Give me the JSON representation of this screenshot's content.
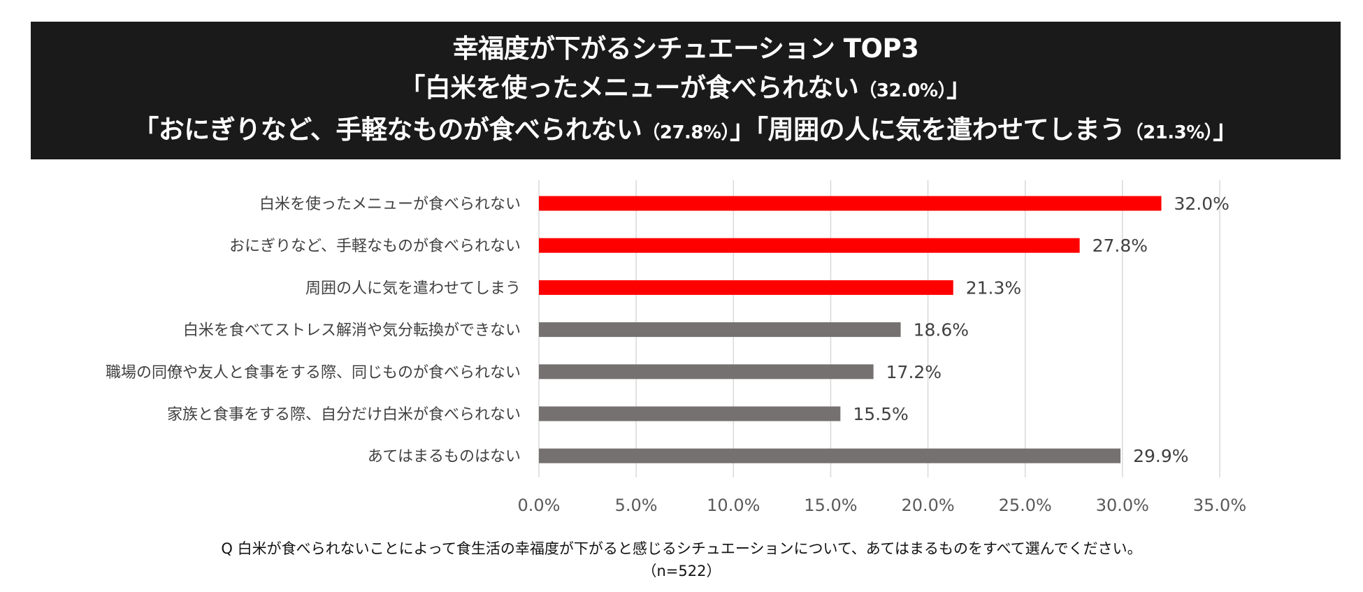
{
  "title": {
    "line1": "幸福度が下がるシチュエーション TOP3",
    "line2_open": "「白米を使ったメニューが食べられない",
    "line2_pct": "（32.0%）",
    "line2_close": "」",
    "line3_a_open": "「おにぎりなど、手軽なものが食べられない",
    "line3_a_pct": "（27.8%）",
    "line3_a_close": "」",
    "line3_b_open": "「周囲の人に気を遣わせてしまう",
    "line3_b_pct": "（21.3%）",
    "line3_b_close": "」"
  },
  "colors": {
    "banner_bg": "#1a1a1a",
    "highlight_bar": "#ff0000",
    "default_bar": "#767171",
    "grid": "#d9d9d9",
    "tick_text": "#595959",
    "label_text": "#404040"
  },
  "chart_data": {
    "type": "bar",
    "orientation": "horizontal",
    "categories": [
      "白米を使ったメニューが食べられない",
      "おにぎりなど、手軽なものが食べられない",
      "周囲の人に気を遣わせてしまう",
      "白米を食べてストレス解消や気分転換ができない",
      "職場の同僚や友人と食事をする際、同じものが食べられない",
      "家族と食事をする際、自分だけ白米が食べられない",
      "あてはまるものはない"
    ],
    "values": [
      32.0,
      27.8,
      21.3,
      18.6,
      17.2,
      15.5,
      29.9
    ],
    "value_labels": [
      "32.0%",
      "27.8%",
      "21.3%",
      "18.6%",
      "17.2%",
      "15.5%",
      "29.9%"
    ],
    "highlighted": [
      true,
      true,
      true,
      false,
      false,
      false,
      false
    ],
    "xlim": [
      0,
      35
    ],
    "xticks": [
      0,
      5,
      10,
      15,
      20,
      25,
      30,
      35
    ],
    "xtick_labels": [
      "0.0%",
      "5.0%",
      "10.0%",
      "15.0%",
      "20.0%",
      "25.0%",
      "30.0%",
      "35.0%"
    ],
    "grid": true,
    "xlabel": "",
    "ylabel": ""
  },
  "footnote": {
    "question": "Q 白米が食べられないことによって食生活の幸福度が下がると感じるシチュエーションについて、あてはまるものをすべて選んでください。",
    "sample": "（n=522）"
  }
}
